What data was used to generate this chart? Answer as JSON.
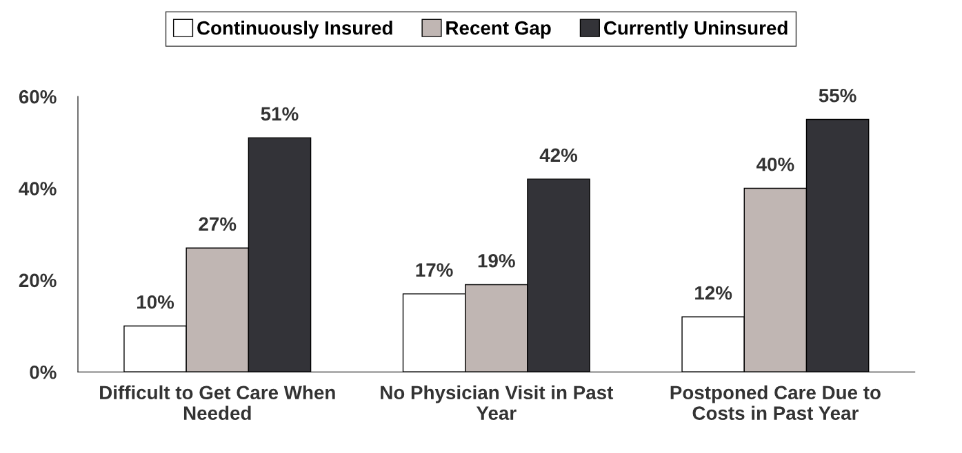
{
  "chart_data": {
    "type": "bar",
    "categories": [
      "Difficult to Get Care When Needed",
      "No Physician Visit in Past Year",
      "Postponed Care Due to Costs in Past Year"
    ],
    "series": [
      {
        "name": "Continuously Insured",
        "color": "#ffffff",
        "values": [
          10,
          17,
          12
        ],
        "value_labels": [
          "10%",
          "17%",
          "12%"
        ]
      },
      {
        "name": "Recent Gap",
        "color": "#c0b6b3",
        "values": [
          27,
          19,
          40
        ],
        "value_labels": [
          "27%",
          "19%",
          "40%"
        ]
      },
      {
        "name": "Currently Uninsured",
        "color": "#333338",
        "values": [
          51,
          42,
          55
        ],
        "value_labels": [
          "51%",
          "42%",
          "55%"
        ]
      }
    ],
    "ylim": [
      0,
      60
    ],
    "yticks": [
      {
        "value": 0,
        "label": "0%"
      },
      {
        "value": 20,
        "label": "20%"
      },
      {
        "value": 40,
        "label": "40%"
      },
      {
        "value": 60,
        "label": "60%"
      }
    ],
    "grid": false,
    "legend": "top"
  }
}
